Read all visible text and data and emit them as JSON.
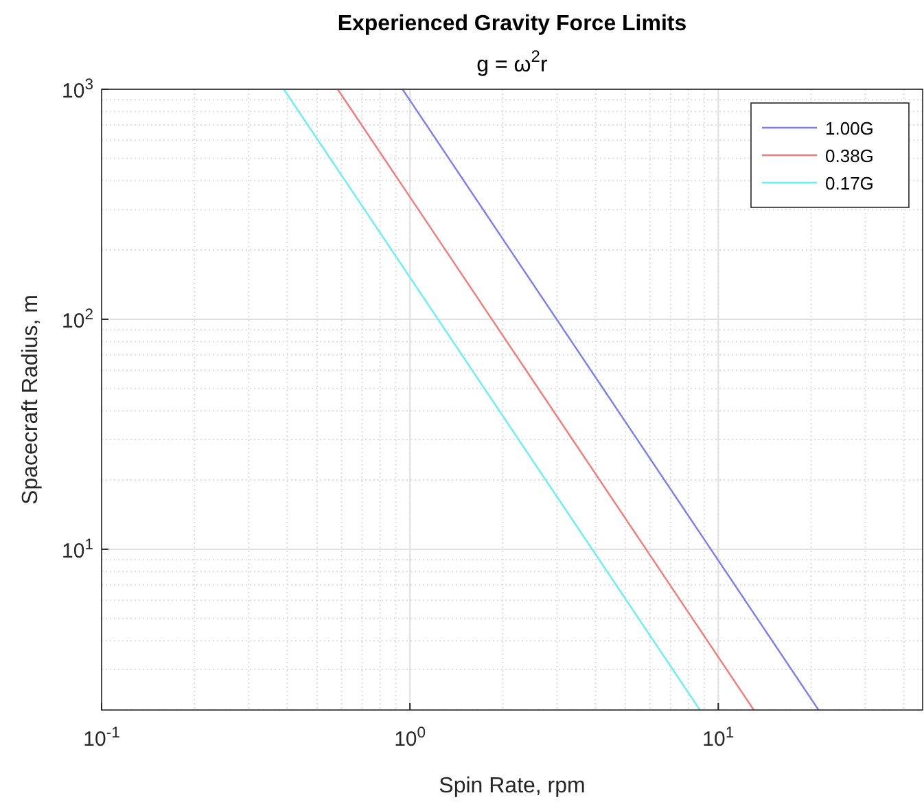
{
  "chart_data": {
    "type": "line",
    "title": "Experienced Gravity Force Limits",
    "subtitle": "g = ω$^{2}$r",
    "xlabel": "Spin Rate, rpm",
    "ylabel": "Spacecraft Radius, m",
    "log": "xy",
    "grid": true,
    "legend": "top right",
    "xlim": [
      0.1,
      46
    ],
    "ylim": [
      2,
      1000
    ],
    "xticks": [
      {
        "value": 0.1,
        "label": "10$^{-1}$"
      },
      {
        "value": 1,
        "label": "10$^{0}$"
      },
      {
        "value": 10,
        "label": "10$^{1}$"
      }
    ],
    "yticks": [
      {
        "value": 10,
        "label": "10$^{1}$"
      },
      {
        "value": 100,
        "label": "10$^{2}$"
      },
      {
        "value": 1000,
        "label": "10$^{3}$"
      }
    ],
    "series": [
      {
        "name": "1.00G",
        "color": "#7b7bf5",
        "x": [
          0.946,
          1,
          21.15
        ],
        "values": [
          1000,
          894.6,
          2
        ]
      },
      {
        "name": "0.38G",
        "color": "#f57b7b",
        "x": [
          0.583,
          1,
          13.04
        ],
        "values": [
          1000,
          340,
          2
        ]
      },
      {
        "name": "0.17G",
        "color": "#66f0f0",
        "x": [
          0.39,
          1,
          8.72
        ],
        "values": [
          1000,
          152.1,
          2
        ]
      }
    ]
  }
}
